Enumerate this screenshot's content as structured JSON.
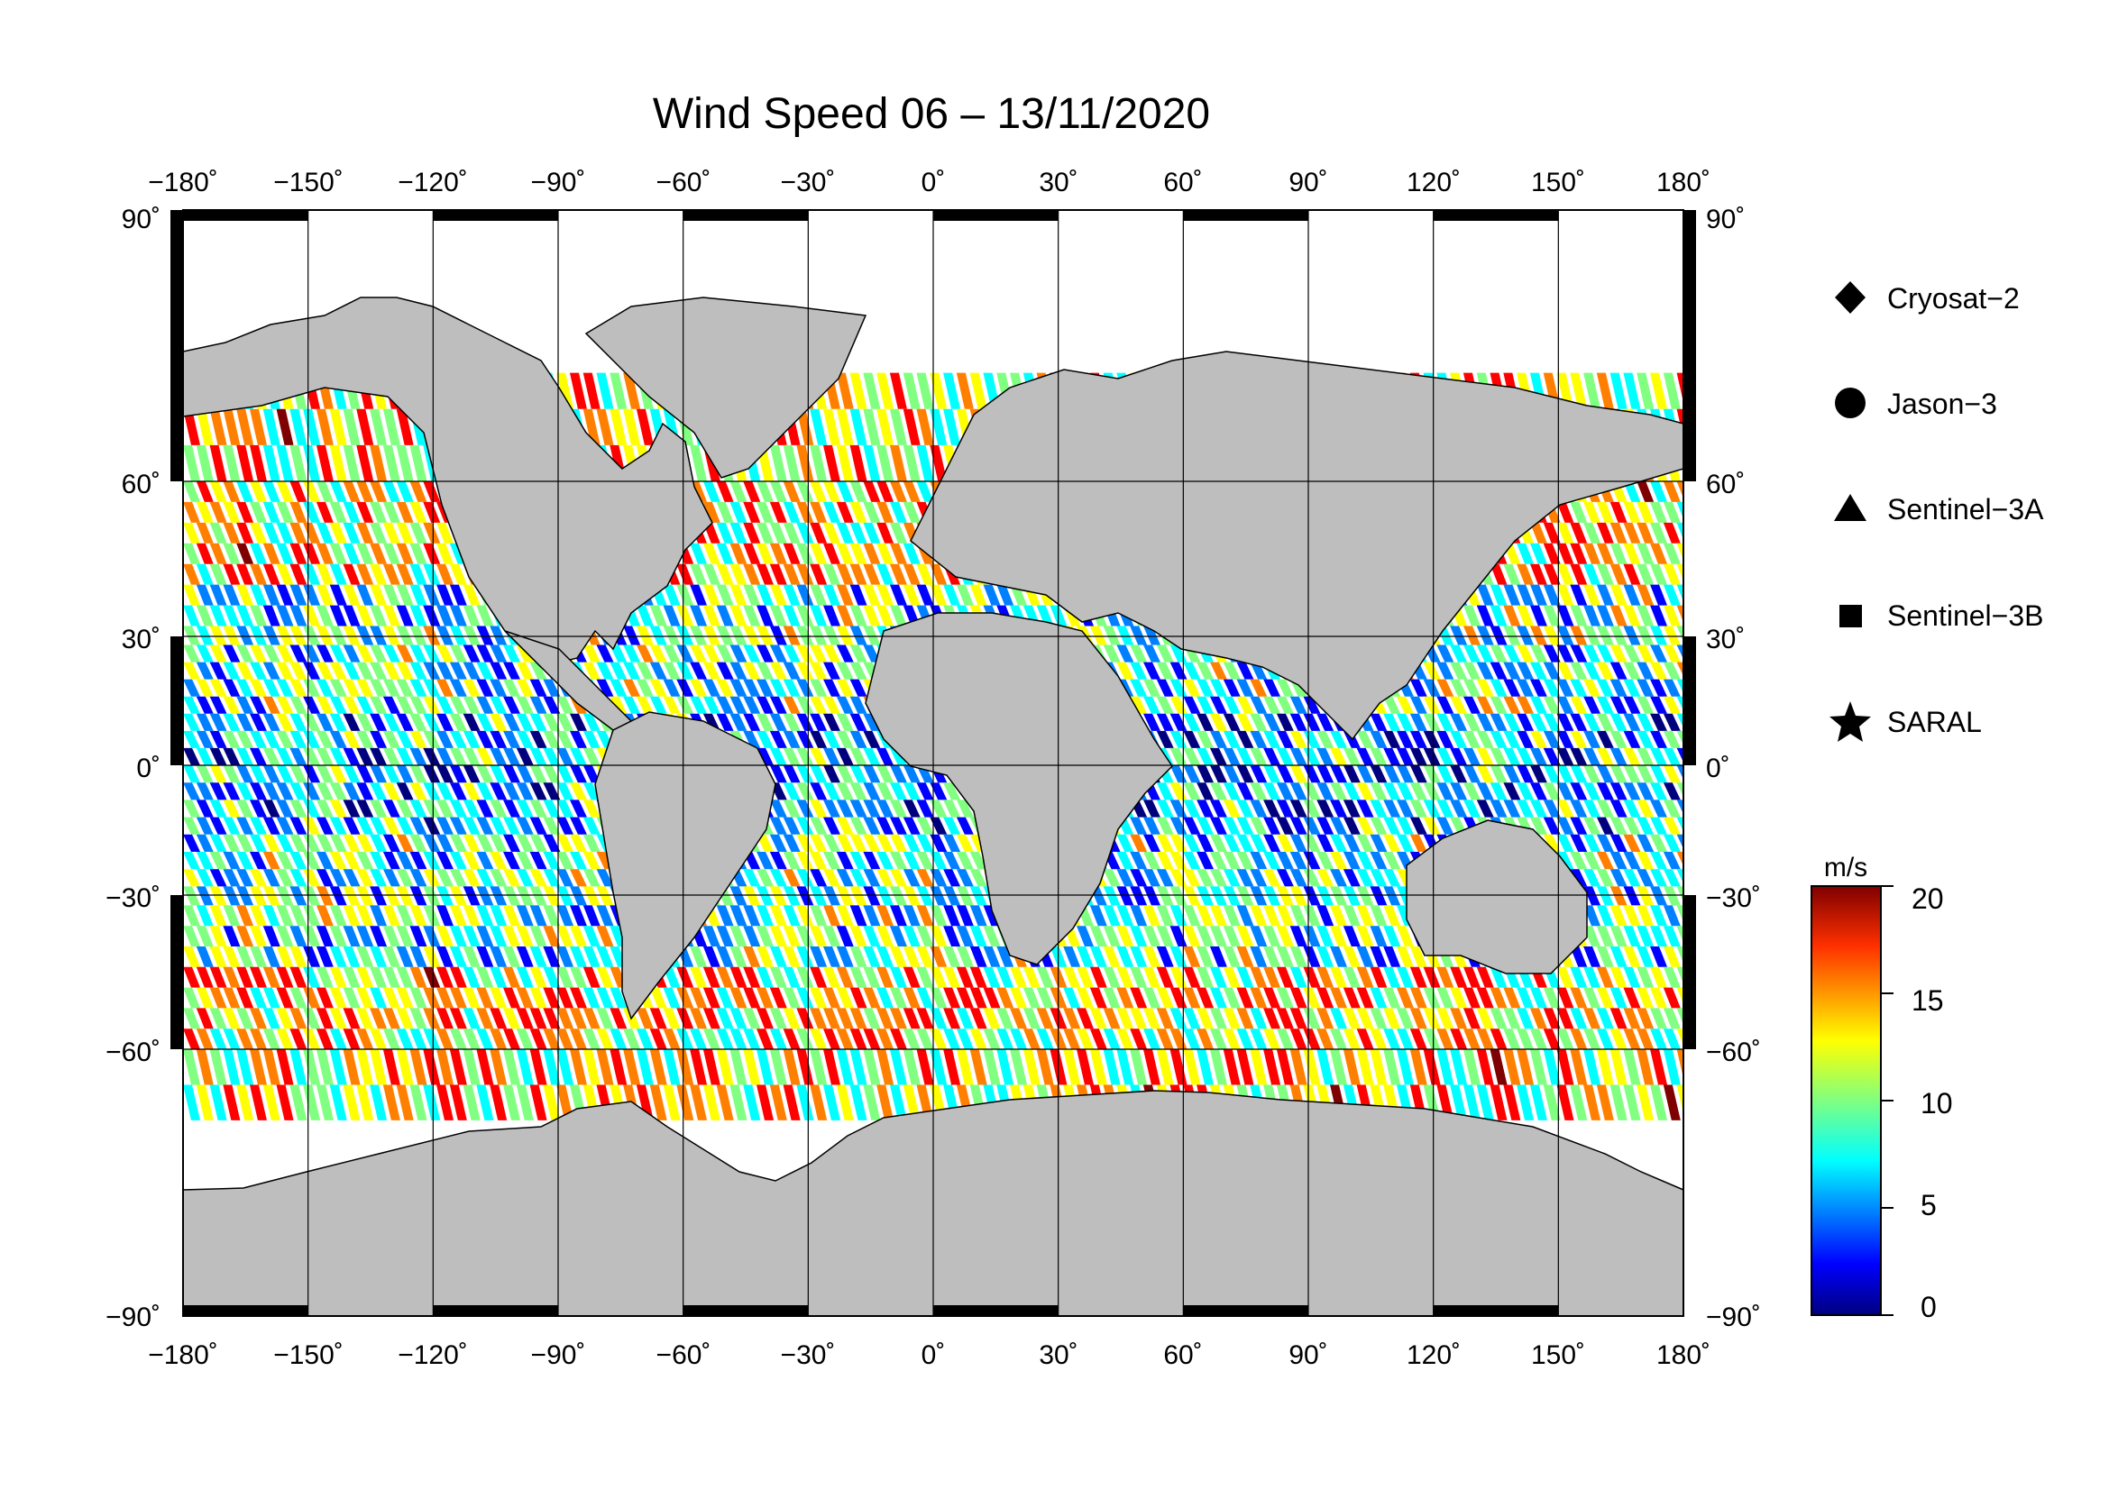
{
  "title": "Wind Speed 06 – 13/11/2020",
  "axes": {
    "lon_ticks": [
      -180,
      -150,
      -120,
      -90,
      -60,
      -30,
      0,
      30,
      60,
      90,
      120,
      150,
      180
    ],
    "lat_ticks": [
      90,
      60,
      30,
      0,
      -30,
      -60,
      -90
    ],
    "lon_labels": [
      "−180˚",
      "−150˚",
      "−120˚",
      "−90˚",
      "−60˚",
      "−30˚",
      "0˚",
      "30˚",
      "60˚",
      "90˚",
      "120˚",
      "150˚",
      "180˚"
    ],
    "lat_labels": [
      "90˚",
      "60˚",
      "30˚",
      "0˚",
      "−30˚",
      "−60˚",
      "−90˚"
    ],
    "lon_range": [
      -180,
      180
    ],
    "lat_range": [
      -90,
      90
    ]
  },
  "legend": {
    "items": [
      {
        "label": "Cryosat−2",
        "symbol": "diamond"
      },
      {
        "label": "Jason−3",
        "symbol": "circle"
      },
      {
        "label": "Sentinel−3A",
        "symbol": "triangle"
      },
      {
        "label": "Sentinel−3B",
        "symbol": "square"
      },
      {
        "label": "SARAL",
        "symbol": "star"
      }
    ]
  },
  "colorbar": {
    "unit": "m/s",
    "ticks": [
      20,
      15,
      10,
      5,
      0
    ],
    "tick_labels": [
      "20",
      "15",
      "10",
      "5",
      "0"
    ],
    "range": [
      0,
      20
    ],
    "colormap": [
      "#00007f",
      "#0000ff",
      "#0080ff",
      "#00ffff",
      "#80ff80",
      "#ffff00",
      "#ff8000",
      "#ff0000",
      "#7f0000"
    ]
  },
  "colors": {
    "land": "#bebebe",
    "ice": "#ffffff",
    "grid": "#000000"
  }
}
